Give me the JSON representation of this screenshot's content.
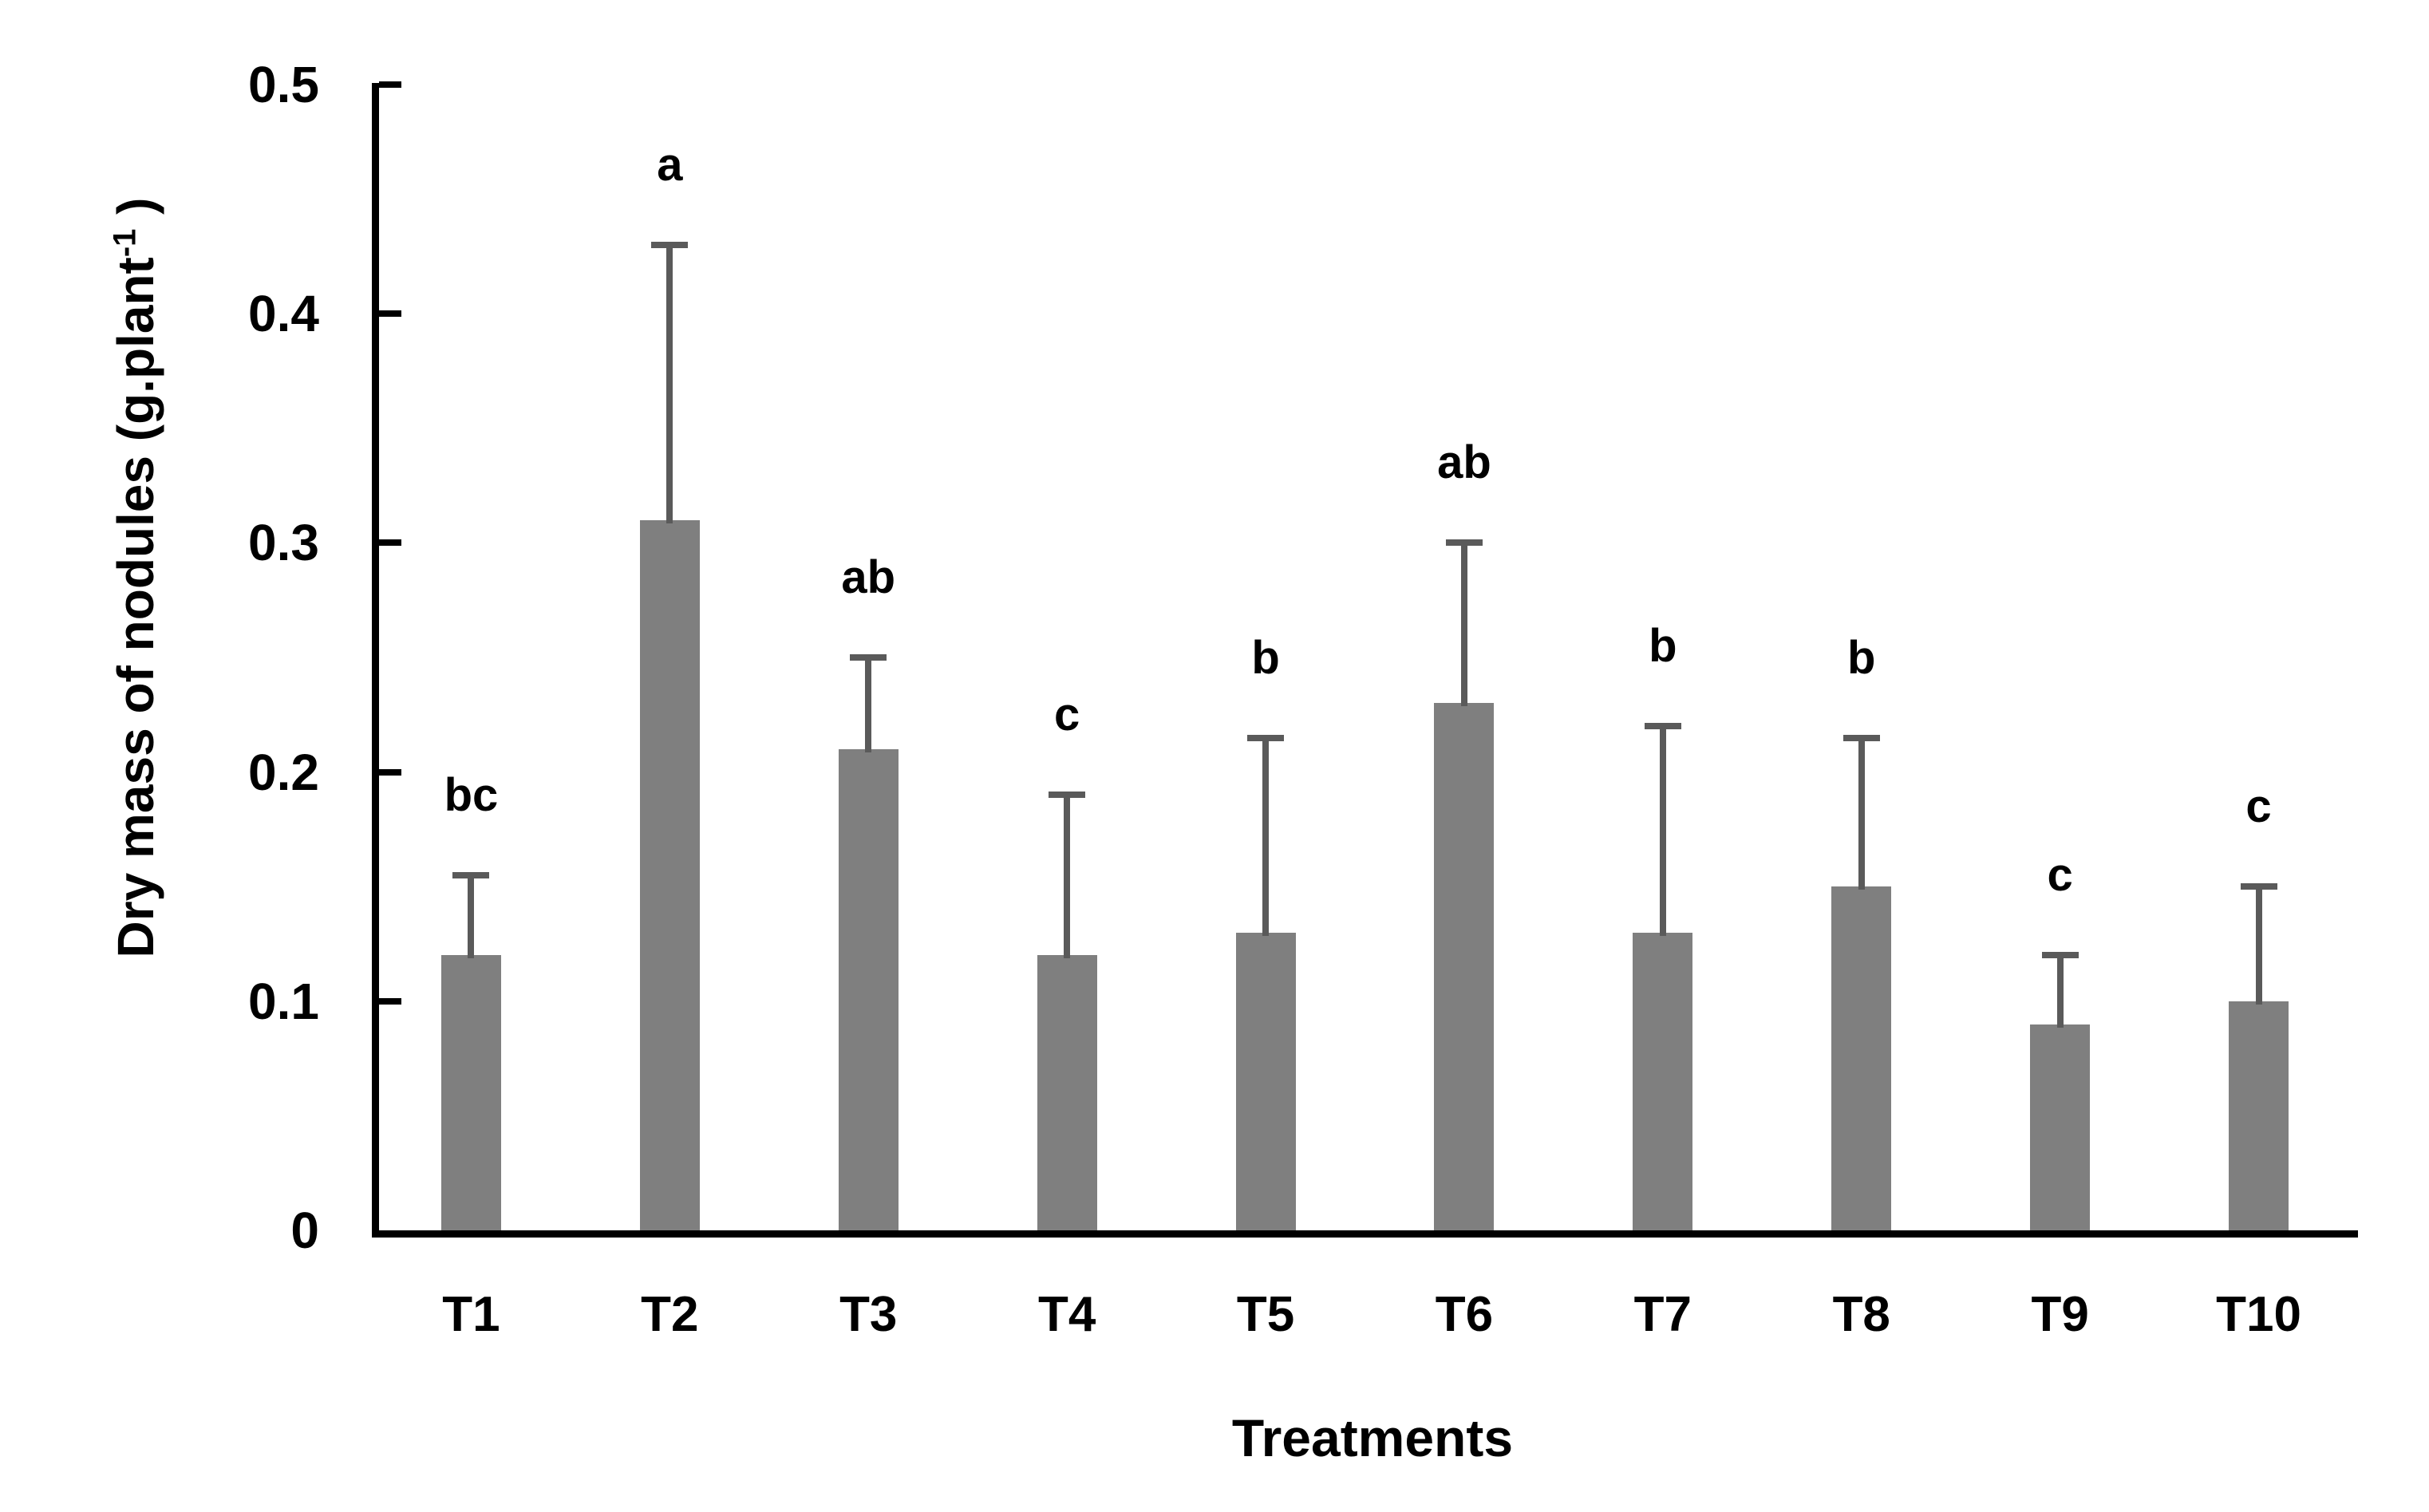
{
  "figure": {
    "background_color": "#ffffff",
    "text_color": "#000000"
  },
  "chart_data": {
    "type": "bar",
    "title": "",
    "xlabel": "Treatments",
    "ylabel_text": "Dry mass of nodules (g.plant⁻¹ )",
    "ylabel_parts": {
      "prefix": "Dry mass of nodules (g.plant",
      "superscript": "-1",
      "suffix": " )"
    },
    "categories": [
      "T1",
      "T2",
      "T3",
      "T4",
      "T5",
      "T6",
      "T7",
      "T8",
      "T9",
      "T10"
    ],
    "series": [
      {
        "name": "Dry mass of nodules",
        "values": [
          0.12,
          0.31,
          0.21,
          0.12,
          0.13,
          0.23,
          0.13,
          0.15,
          0.09,
          0.1
        ],
        "errors_plus": [
          0.035,
          0.12,
          0.04,
          0.07,
          0.085,
          0.07,
          0.09,
          0.065,
          0.03,
          0.05
        ],
        "error_bar_tops": [
          0.155,
          0.43,
          0.25,
          0.19,
          0.215,
          0.3,
          0.22,
          0.215,
          0.12,
          0.15
        ]
      }
    ],
    "significance_letters": [
      "bc",
      "a",
      "ab",
      "c",
      "b",
      "ab",
      "b",
      "b",
      "c",
      "c"
    ],
    "y_ticks": [
      0,
      0.1,
      0.2,
      0.3,
      0.4,
      0.5
    ],
    "y_tick_labels": [
      "0",
      "0.1",
      "0.2",
      "0.3",
      "0.4",
      "0.5"
    ],
    "ylim": [
      0,
      0.5
    ],
    "grid": false,
    "legend_position": "none",
    "bar_color": "#7f7f7f",
    "error_bar_color": "#5a5a5a",
    "axis_color": "#000000"
  }
}
